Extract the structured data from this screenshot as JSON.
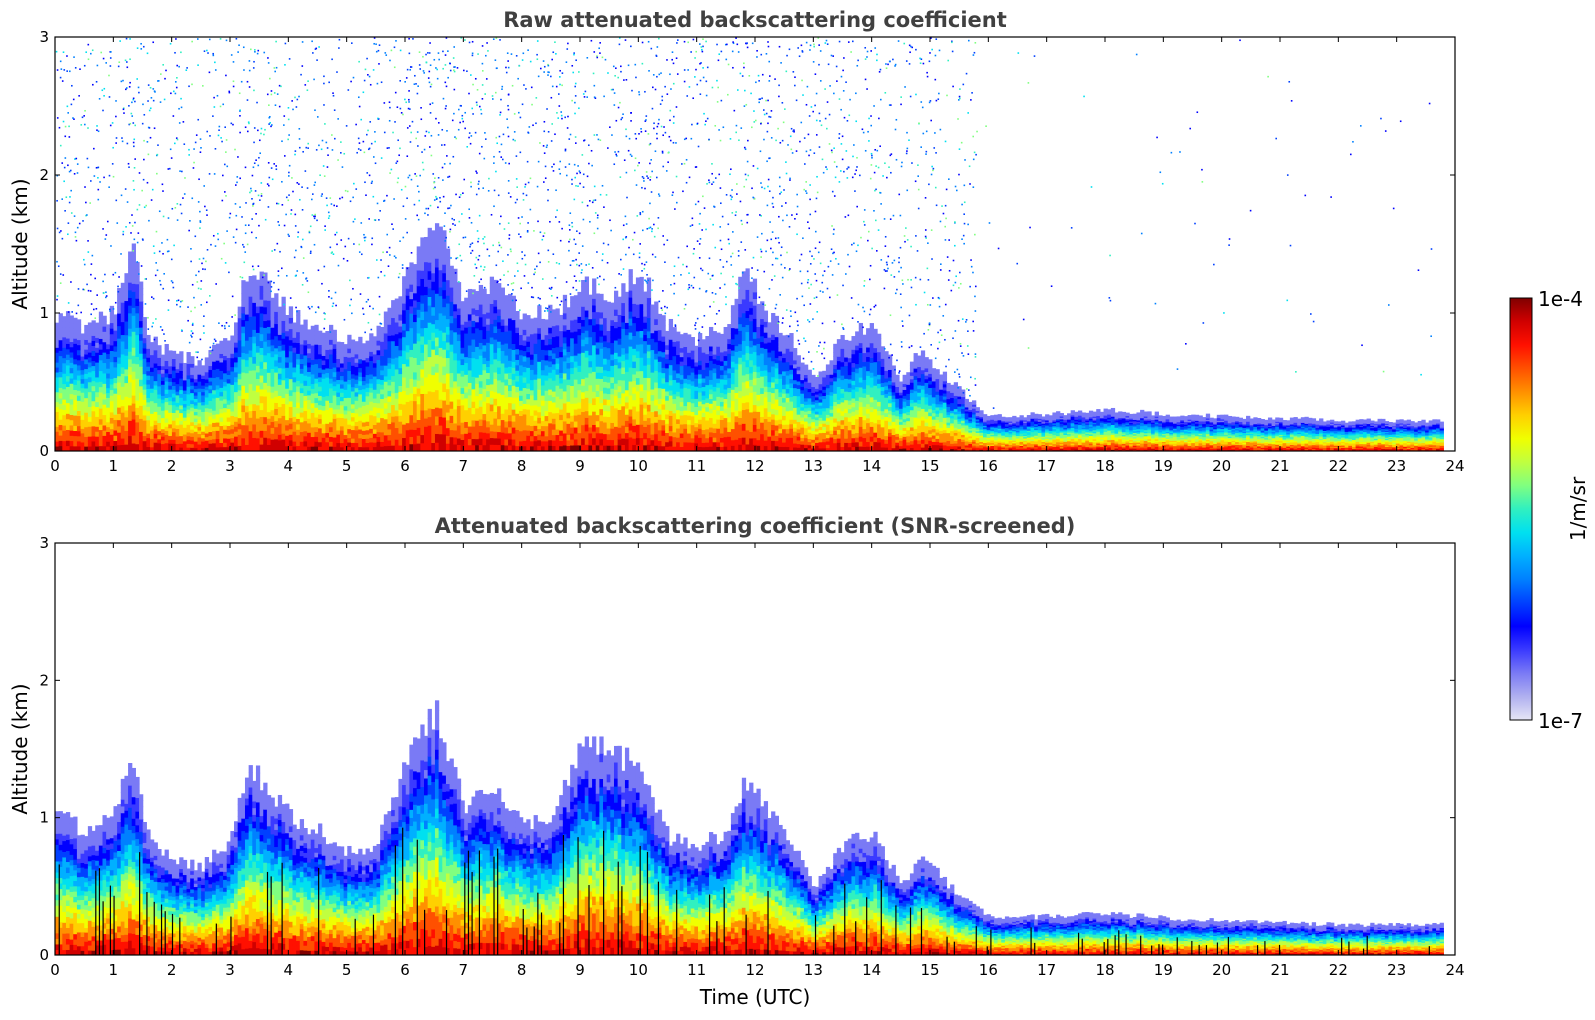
{
  "chart_data": [
    {
      "type": "heatmap",
      "title": "Raw attenuated backscattering coefficient",
      "xlabel": "",
      "ylabel": "Altitude (km)",
      "xlim": [
        0,
        24
      ],
      "ylim": [
        0,
        3
      ],
      "x_ticks": [
        "0",
        "1",
        "2",
        "3",
        "4",
        "5",
        "6",
        "7",
        "8",
        "9",
        "10",
        "11",
        "12",
        "13",
        "14",
        "15",
        "16",
        "17",
        "18",
        "19",
        "20",
        "21",
        "22",
        "23",
        "24"
      ],
      "y_ticks": [
        "0",
        "1",
        "2",
        "3"
      ],
      "screened": false,
      "time_utc": [
        0,
        0.5,
        1,
        1.3,
        1.6,
        2,
        2.5,
        3,
        3.3,
        3.6,
        4,
        4.5,
        5,
        5.5,
        6,
        6.5,
        7,
        7.5,
        8,
        8.5,
        9,
        9.5,
        10,
        10.5,
        11,
        11.5,
        11.8,
        12.2,
        12.6,
        13,
        13.5,
        14,
        14.5,
        14.8,
        15.2,
        15.6,
        16,
        17,
        18,
        19,
        20,
        21,
        22,
        23,
        23.8
      ],
      "aerosol_layer_top_km": [
        1.0,
        0.9,
        1.0,
        1.5,
        0.8,
        0.7,
        0.65,
        0.85,
        1.35,
        1.2,
        1.0,
        0.9,
        0.8,
        0.85,
        1.3,
        1.75,
        1.1,
        1.2,
        1.0,
        1.0,
        1.2,
        1.15,
        1.3,
        0.9,
        0.8,
        0.9,
        1.3,
        1.0,
        0.8,
        0.5,
        0.85,
        0.9,
        0.5,
        0.75,
        0.55,
        0.4,
        0.25,
        0.27,
        0.3,
        0.27,
        0.25,
        0.24,
        0.22,
        0.22,
        0.22
      ],
      "noise_top_km": 3.0,
      "noise_end_time_utc": 15.8
    },
    {
      "type": "heatmap",
      "title": "Attenuated backscattering coefficient (SNR-screened)",
      "xlabel": "Time (UTC)",
      "ylabel": "Altitude (km)",
      "xlim": [
        0,
        24
      ],
      "ylim": [
        0,
        3
      ],
      "x_ticks": [
        "0",
        "1",
        "2",
        "3",
        "4",
        "5",
        "6",
        "7",
        "8",
        "9",
        "10",
        "11",
        "12",
        "13",
        "14",
        "15",
        "16",
        "17",
        "18",
        "19",
        "20",
        "21",
        "22",
        "23",
        "24"
      ],
      "y_ticks": [
        "0",
        "1",
        "2",
        "3"
      ],
      "screened": true,
      "time_utc": [
        0,
        0.5,
        1,
        1.3,
        1.6,
        2,
        2.5,
        3,
        3.3,
        3.6,
        4,
        4.5,
        5,
        5.5,
        6,
        6.5,
        7,
        7.5,
        8,
        8.5,
        9,
        9.5,
        10,
        10.5,
        11,
        11.5,
        11.8,
        12.2,
        12.6,
        13,
        13.5,
        14,
        14.5,
        14.8,
        15.2,
        15.6,
        16,
        17,
        18,
        19,
        20,
        21,
        22,
        23,
        23.8
      ],
      "aerosol_layer_top_km": [
        1.05,
        0.9,
        1.05,
        1.5,
        0.8,
        0.7,
        0.65,
        0.85,
        1.35,
        1.25,
        1.0,
        0.9,
        0.75,
        0.8,
        1.4,
        1.8,
        1.1,
        1.2,
        1.0,
        0.95,
        1.55,
        1.5,
        1.35,
        0.85,
        0.8,
        0.9,
        1.3,
        1.05,
        0.8,
        0.5,
        0.8,
        0.9,
        0.5,
        0.75,
        0.55,
        0.4,
        0.27,
        0.28,
        0.3,
        0.27,
        0.25,
        0.24,
        0.22,
        0.22,
        0.22
      ]
    }
  ],
  "colorbar": {
    "max_label": "1e-4",
    "min_label": "1e-7",
    "unit_label": "1/m/sr",
    "colors": [
      "#e6e6f5",
      "#b0b0f0",
      "#7a7af5",
      "#3a3aff",
      "#0000ff",
      "#0040ff",
      "#0080ff",
      "#00b0ff",
      "#00e0f0",
      "#30f0c0",
      "#80ff80",
      "#c0ff40",
      "#f0ff00",
      "#ffd000",
      "#ff9000",
      "#ff5000",
      "#ff1000",
      "#d00000",
      "#800000"
    ]
  }
}
